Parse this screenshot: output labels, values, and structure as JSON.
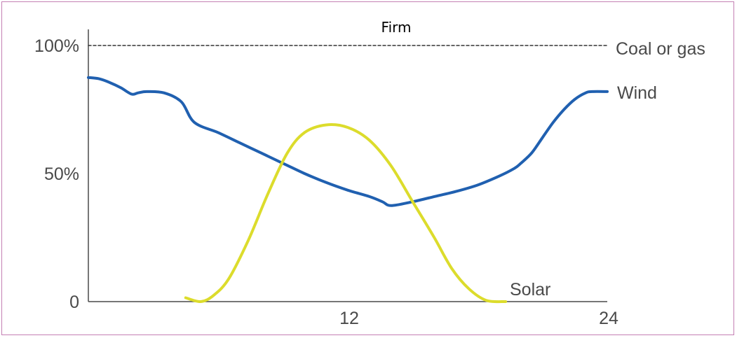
{
  "chart_data": {
    "type": "line",
    "title": "Firm",
    "xlabel": "",
    "ylabel": "",
    "xlim": [
      0,
      24
    ],
    "ylim": [
      0,
      100
    ],
    "x_ticks": [
      "12",
      "24"
    ],
    "y_ticks": [
      "0",
      "50%",
      "100%"
    ],
    "series": [
      {
        "name": "Coal or gas",
        "color": "#333333",
        "style": "dashed",
        "x": [
          0,
          24
        ],
        "y": [
          100,
          100
        ]
      },
      {
        "name": "Wind",
        "color": "#2060b0",
        "x": [
          0,
          0.5,
          1,
          1.5,
          2.0,
          2.3,
          2.7,
          3.5,
          4.3,
          4.9,
          6,
          7,
          8,
          9,
          10,
          11,
          12,
          13,
          13.6,
          14,
          15,
          16,
          17,
          18,
          19,
          19.7,
          20,
          20.5,
          21,
          21.5,
          22,
          22.5,
          23,
          23.3,
          24
        ],
        "y": [
          87.5,
          87,
          85.5,
          83.5,
          81,
          81.5,
          82,
          81.5,
          78,
          70,
          66,
          62,
          58,
          54,
          50,
          46.5,
          43.5,
          41,
          39,
          37.5,
          39,
          41,
          43,
          45.5,
          49,
          52,
          54,
          58,
          64,
          70,
          75,
          79,
          81.5,
          82,
          82
        ]
      },
      {
        "name": "Solar",
        "color": "#dcdc2c",
        "x": [
          4.5,
          5.2,
          5.8,
          6.5,
          7.4,
          8.3,
          9.2,
          10,
          11,
          12,
          13,
          14,
          15,
          16,
          16.8,
          17.6,
          18.4,
          19.3
        ],
        "y": [
          1.5,
          0,
          2.5,
          9,
          24,
          42,
          58,
          66,
          69,
          68,
          63,
          53,
          39,
          25,
          13,
          5,
          0.5,
          0
        ]
      }
    ]
  }
}
